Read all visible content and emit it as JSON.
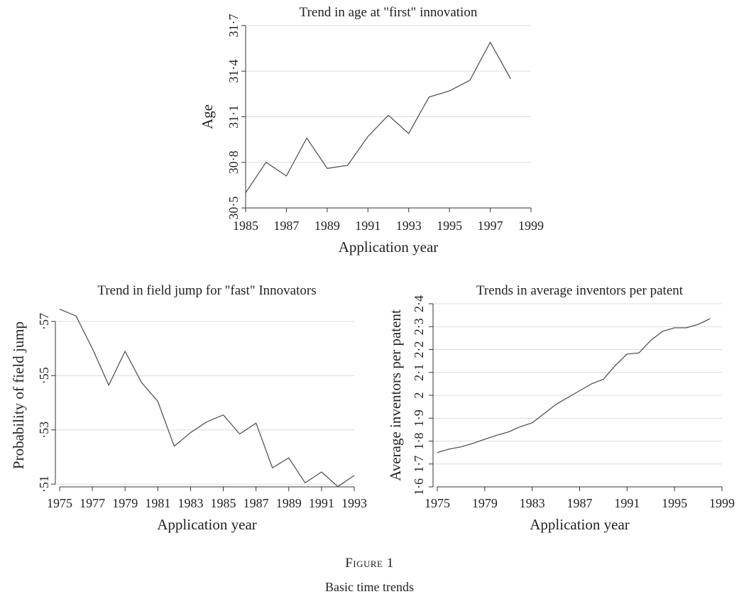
{
  "figure": {
    "label": "Figure 1",
    "caption": "Basic time trends"
  },
  "chart_data": [
    {
      "type": "line",
      "title": "Trend in age at \"first\" innovation",
      "xlabel": "Application year",
      "ylabel": "Age",
      "xlim": [
        1985,
        1999
      ],
      "ylim": [
        30.5,
        31.7
      ],
      "xticks": [
        1985,
        1987,
        1989,
        1991,
        1993,
        1995,
        1997,
        1999
      ],
      "xtick_labels": [
        "1985",
        "1987",
        "1989",
        "1991",
        "1993",
        "1995",
        "1997",
        "1999"
      ],
      "yticks": [
        30.5,
        30.8,
        31.1,
        31.4,
        31.7
      ],
      "ytick_labels": [
        "30·5",
        "30·8",
        "31·1",
        "31·4",
        "31·7"
      ],
      "grid": true,
      "series": [
        {
          "x": [
            1985,
            1986,
            1987,
            1988,
            1989,
            1990,
            1991,
            1992,
            1993,
            1994,
            1995,
            1996,
            1997,
            1998
          ],
          "values": [
            30.6,
            30.8,
            30.71,
            30.96,
            30.76,
            30.78,
            30.97,
            31.11,
            30.99,
            31.23,
            31.27,
            31.34,
            31.59,
            31.35
          ]
        }
      ]
    },
    {
      "type": "line",
      "title": "Trend in field jump for \"fast\" Innovators",
      "xlabel": "Application year",
      "ylabel": "Probability of field jump",
      "xlim": [
        1975,
        1993
      ],
      "ylim": [
        0.509,
        0.5765
      ],
      "xticks": [
        1975,
        1977,
        1979,
        1981,
        1983,
        1985,
        1987,
        1989,
        1991,
        1993
      ],
      "xtick_labels": [
        "1975",
        "1977",
        "1979",
        "1981",
        "1983",
        "1985",
        "1987",
        "1989",
        "1991",
        "1993"
      ],
      "yticks": [
        0.51,
        0.53,
        0.55,
        0.57
      ],
      "ytick_labels": [
        "·51",
        "·53",
        "·55",
        "·57"
      ],
      "grid": true,
      "series": [
        {
          "x": [
            1975,
            1976,
            1977,
            1978,
            1979,
            1980,
            1981,
            1982,
            1983,
            1984,
            1985,
            1986,
            1987,
            1988,
            1989,
            1990,
            1991,
            1992,
            1993
          ],
          "values": [
            0.5745,
            0.572,
            0.56,
            0.5465,
            0.559,
            0.5475,
            0.5405,
            0.524,
            0.529,
            0.533,
            0.5355,
            0.5285,
            0.5325,
            0.516,
            0.5197,
            0.5105,
            0.5145,
            0.5091,
            0.5132
          ]
        }
      ]
    },
    {
      "type": "line",
      "title": "Trends in average inventors per patent",
      "xlabel": "Application year",
      "ylabel": "Average inventors per patent",
      "xlim": [
        1975,
        1999
      ],
      "ylim": [
        1.6,
        2.4
      ],
      "xticks": [
        1975,
        1979,
        1983,
        1987,
        1991,
        1995,
        1999
      ],
      "xtick_labels": [
        "1975",
        "1979",
        "1983",
        "1987",
        "1991",
        "1995",
        "1999"
      ],
      "yticks": [
        1.6,
        1.7,
        1.8,
        1.9,
        2.0,
        2.1,
        2.2,
        2.3,
        2.4
      ],
      "ytick_labels": [
        "1·6",
        "1·7",
        "1·8",
        "1·9",
        "2",
        "2·1",
        "2·2",
        "2·3",
        "2·4"
      ],
      "grid": true,
      "series": [
        {
          "x": [
            1975,
            1976,
            1977,
            1978,
            1979,
            1980,
            1981,
            1982,
            1983,
            1984,
            1985,
            1986,
            1987,
            1988,
            1989,
            1990,
            1991,
            1992,
            1993,
            1994,
            1995,
            1996,
            1997,
            1998
          ],
          "values": [
            1.75,
            1.765,
            1.775,
            1.79,
            1.808,
            1.825,
            1.84,
            1.863,
            1.88,
            1.92,
            1.96,
            1.99,
            2.02,
            2.05,
            2.07,
            2.13,
            2.18,
            2.185,
            2.24,
            2.28,
            2.295,
            2.295,
            2.31,
            2.335
          ]
        }
      ]
    }
  ]
}
